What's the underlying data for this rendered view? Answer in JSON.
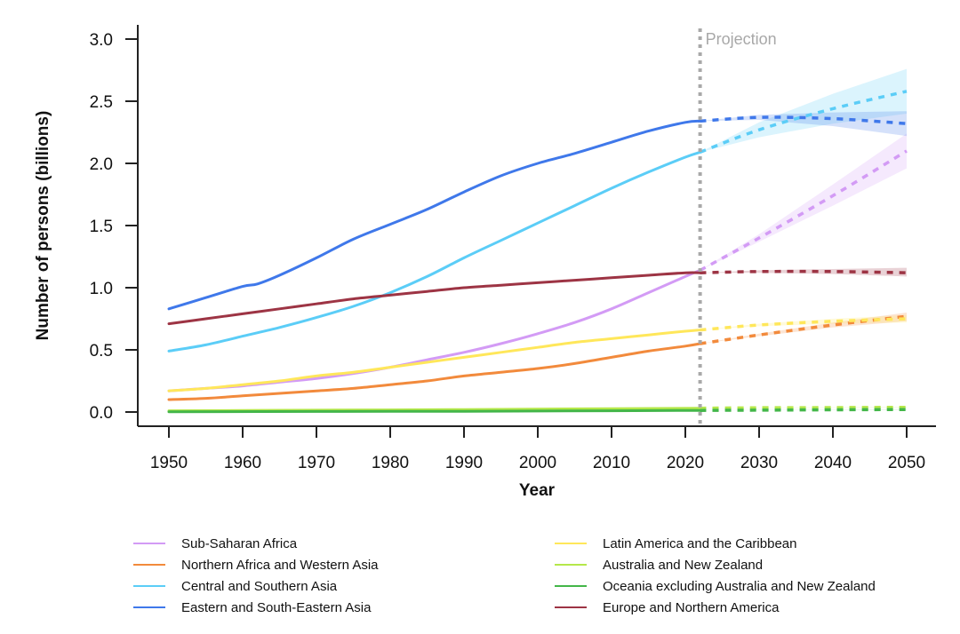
{
  "chart_data": {
    "type": "line",
    "title": "",
    "xlabel": "Year",
    "ylabel": "Number of persons (billions)",
    "xlim": [
      1946,
      2054
    ],
    "ylim": [
      -0.1,
      3.1
    ],
    "x_ticks": [
      1950,
      1960,
      1970,
      1980,
      1990,
      2000,
      2010,
      2020,
      2030,
      2040,
      2050
    ],
    "x_tick_labels": [
      "1950",
      "1960",
      "1970",
      "1980",
      "1990",
      "2000",
      "2010",
      "2020",
      "2030",
      "2040",
      "2050"
    ],
    "y_ticks": [
      0.0,
      0.5,
      1.0,
      1.5,
      2.0,
      2.5,
      3.0
    ],
    "y_tick_labels": [
      "0.0",
      "0.5",
      "1.0",
      "1.5",
      "2.0",
      "2.5",
      "3.0"
    ],
    "grid": false,
    "legend_position": "bottom",
    "annotations": [
      {
        "text": "Projection",
        "x": 2022
      }
    ],
    "projection_start": 2022,
    "series": [
      {
        "name": "Sub-Saharan Africa",
        "color": "#d39bf5",
        "x": [
          1950,
          1955,
          1960,
          1965,
          1970,
          1975,
          1980,
          1985,
          1990,
          1995,
          2000,
          2005,
          2010,
          2015,
          2020,
          2022
        ],
        "values": [
          0.17,
          0.19,
          0.21,
          0.24,
          0.27,
          0.31,
          0.36,
          0.42,
          0.48,
          0.55,
          0.63,
          0.72,
          0.83,
          0.96,
          1.09,
          1.14
        ],
        "projection": {
          "x": [
            2022,
            2030,
            2040,
            2050
          ],
          "values": [
            1.14,
            1.4,
            1.74,
            2.1
          ],
          "upper": [
            1.14,
            1.43,
            1.83,
            2.24
          ],
          "lower": [
            1.14,
            1.37,
            1.66,
            1.96
          ]
        }
      },
      {
        "name": "Northern Africa and Western Asia",
        "color": "#f28a3c",
        "x": [
          1950,
          1955,
          1960,
          1965,
          1970,
          1975,
          1980,
          1985,
          1990,
          1995,
          2000,
          2005,
          2010,
          2015,
          2020,
          2022
        ],
        "values": [
          0.1,
          0.11,
          0.13,
          0.15,
          0.17,
          0.19,
          0.22,
          0.25,
          0.29,
          0.32,
          0.35,
          0.39,
          0.44,
          0.49,
          0.53,
          0.55
        ],
        "projection": {
          "x": [
            2022,
            2030,
            2040,
            2050
          ],
          "values": [
            0.55,
            0.62,
            0.7,
            0.77
          ],
          "upper": [
            0.55,
            0.63,
            0.72,
            0.8
          ],
          "lower": [
            0.55,
            0.61,
            0.68,
            0.73
          ]
        }
      },
      {
        "name": "Central and Southern Asia",
        "color": "#5bcdf7",
        "x": [
          1950,
          1955,
          1960,
          1965,
          1970,
          1975,
          1980,
          1985,
          1990,
          1995,
          2000,
          2005,
          2010,
          2015,
          2020,
          2022
        ],
        "values": [
          0.49,
          0.54,
          0.61,
          0.68,
          0.76,
          0.85,
          0.96,
          1.09,
          1.24,
          1.38,
          1.52,
          1.66,
          1.8,
          1.93,
          2.05,
          2.09
        ],
        "projection": {
          "x": [
            2022,
            2030,
            2040,
            2050
          ],
          "values": [
            2.09,
            2.27,
            2.44,
            2.58
          ],
          "upper": [
            2.09,
            2.33,
            2.56,
            2.76
          ],
          "lower": [
            2.09,
            2.21,
            2.32,
            2.4
          ]
        }
      },
      {
        "name": "Eastern and South-Eastern Asia",
        "color": "#3f78ea",
        "x": [
          1950,
          1955,
          1960,
          1962,
          1965,
          1970,
          1975,
          1980,
          1985,
          1990,
          1995,
          2000,
          2005,
          2010,
          2015,
          2020,
          2022
        ],
        "values": [
          0.83,
          0.92,
          1.01,
          1.03,
          1.1,
          1.24,
          1.39,
          1.51,
          1.63,
          1.77,
          1.9,
          2.0,
          2.08,
          2.17,
          2.26,
          2.33,
          2.34
        ],
        "projection": {
          "x": [
            2022,
            2030,
            2040,
            2050
          ],
          "values": [
            2.34,
            2.37,
            2.36,
            2.32
          ],
          "upper": [
            2.34,
            2.39,
            2.41,
            2.42
          ],
          "lower": [
            2.34,
            2.35,
            2.3,
            2.22
          ]
        }
      },
      {
        "name": "Latin America and the Caribbean",
        "color": "#ffe75a",
        "x": [
          1950,
          1955,
          1960,
          1965,
          1970,
          1975,
          1980,
          1985,
          1990,
          1995,
          2000,
          2005,
          2010,
          2015,
          2020,
          2022
        ],
        "values": [
          0.17,
          0.19,
          0.22,
          0.25,
          0.29,
          0.32,
          0.36,
          0.4,
          0.44,
          0.48,
          0.52,
          0.56,
          0.59,
          0.62,
          0.65,
          0.66
        ],
        "projection": {
          "x": [
            2022,
            2030,
            2040,
            2050
          ],
          "values": [
            0.66,
            0.7,
            0.73,
            0.75
          ],
          "upper": [
            0.66,
            0.71,
            0.75,
            0.78
          ],
          "lower": [
            0.66,
            0.69,
            0.71,
            0.72
          ]
        }
      },
      {
        "name": "Australia and New Zealand",
        "color": "#b5e84a",
        "x": [
          1950,
          1970,
          1990,
          2010,
          2022
        ],
        "values": [
          0.01,
          0.015,
          0.02,
          0.027,
          0.031
        ],
        "projection": {
          "x": [
            2022,
            2030,
            2040,
            2050
          ],
          "values": [
            0.031,
            0.034,
            0.036,
            0.038
          ],
          "upper": [
            0.031,
            0.035,
            0.038,
            0.041
          ],
          "lower": [
            0.031,
            0.033,
            0.034,
            0.035
          ]
        }
      },
      {
        "name": "Oceania excluding Australia and New Zealand",
        "color": "#43b649",
        "x": [
          1950,
          1970,
          1990,
          2010,
          2022
        ],
        "values": [
          0.002,
          0.004,
          0.006,
          0.01,
          0.013
        ],
        "projection": {
          "x": [
            2022,
            2030,
            2040,
            2050
          ],
          "values": [
            0.013,
            0.015,
            0.018,
            0.02
          ],
          "upper": [
            0.013,
            0.016,
            0.019,
            0.022
          ],
          "lower": [
            0.013,
            0.014,
            0.017,
            0.018
          ]
        }
      },
      {
        "name": "Europe and Northern America",
        "color": "#9d3444",
        "x": [
          1950,
          1955,
          1960,
          1965,
          1970,
          1975,
          1980,
          1985,
          1990,
          1995,
          2000,
          2005,
          2010,
          2015,
          2020,
          2022
        ],
        "values": [
          0.71,
          0.75,
          0.79,
          0.83,
          0.87,
          0.91,
          0.94,
          0.97,
          1.0,
          1.02,
          1.04,
          1.06,
          1.08,
          1.1,
          1.12,
          1.12
        ],
        "projection": {
          "x": [
            2022,
            2030,
            2040,
            2050
          ],
          "values": [
            1.12,
            1.13,
            1.13,
            1.12
          ],
          "upper": [
            1.12,
            1.14,
            1.15,
            1.16
          ],
          "lower": [
            1.12,
            1.12,
            1.11,
            1.09
          ]
        }
      }
    ]
  },
  "legend": {
    "left": [
      {
        "label": "Sub-Saharan Africa",
        "color": "#d39bf5"
      },
      {
        "label": "Northern Africa and Western Asia",
        "color": "#f28a3c"
      },
      {
        "label": "Central and Southern Asia",
        "color": "#5bcdf7"
      },
      {
        "label": "Eastern and South-Eastern Asia",
        "color": "#3f78ea"
      }
    ],
    "right": [
      {
        "label": "Latin America and the Caribbean",
        "color": "#ffe75a"
      },
      {
        "label": "Australia and New Zealand",
        "color": "#b5e84a"
      },
      {
        "label": "Oceania excluding Australia and New Zealand",
        "color": "#43b649"
      },
      {
        "label": "Europe and Northern America",
        "color": "#9d3444"
      }
    ]
  },
  "annotation": {
    "projection_label": "Projection",
    "projection_line_color": "#a8a8a8"
  }
}
